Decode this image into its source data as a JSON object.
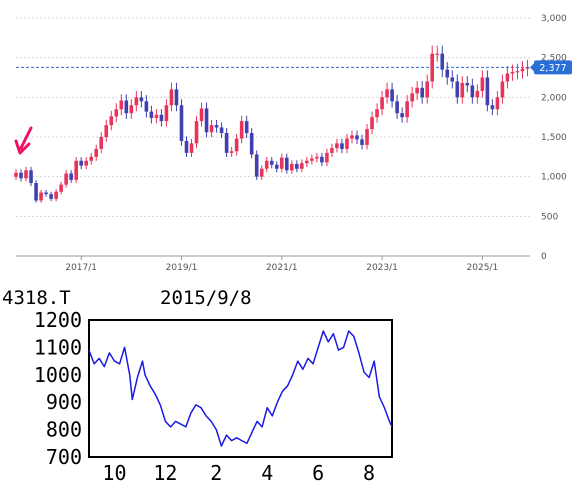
{
  "top_chart_price_label": "2,377",
  "bottom_chart_header": {
    "ticker": "4318.T",
    "date": "2015/9/8"
  },
  "chart_data": [
    {
      "type": "candlestick",
      "title": "",
      "x_ticks": [
        "2017/1",
        "2019/1",
        "2021/1",
        "2023/1",
        "2025/1"
      ],
      "y_ticks": [
        "0",
        "500",
        "1,000",
        "1,500",
        "2,000",
        "2,500",
        "3,000"
      ],
      "ylim": [
        0,
        3000
      ],
      "xlim": [
        2015.7,
        2025.95
      ],
      "current_price": 2377,
      "grid": true,
      "colors": {
        "up": "#e8335a",
        "down": "#4040b0",
        "price_line": "#2a6fd6"
      },
      "series": [
        {
          "x": 2015.7,
          "c": 1050
        },
        {
          "x": 2015.8,
          "c": 980
        },
        {
          "x": 2015.9,
          "c": 1080
        },
        {
          "x": 2016.0,
          "c": 920
        },
        {
          "x": 2016.1,
          "c": 700
        },
        {
          "x": 2016.2,
          "c": 800
        },
        {
          "x": 2016.3,
          "c": 780
        },
        {
          "x": 2016.4,
          "c": 720
        },
        {
          "x": 2016.5,
          "c": 810
        },
        {
          "x": 2016.6,
          "c": 900
        },
        {
          "x": 2016.7,
          "c": 1040
        },
        {
          "x": 2016.8,
          "c": 960
        },
        {
          "x": 2016.9,
          "c": 1200
        },
        {
          "x": 2017.0,
          "c": 1140
        },
        {
          "x": 2017.1,
          "c": 1200
        },
        {
          "x": 2017.2,
          "c": 1250
        },
        {
          "x": 2017.3,
          "c": 1350
        },
        {
          "x": 2017.4,
          "c": 1500
        },
        {
          "x": 2017.5,
          "c": 1650
        },
        {
          "x": 2017.6,
          "c": 1760
        },
        {
          "x": 2017.7,
          "c": 1850
        },
        {
          "x": 2017.8,
          "c": 1960
        },
        {
          "x": 2017.9,
          "c": 1800
        },
        {
          "x": 2018.0,
          "c": 1900
        },
        {
          "x": 2018.1,
          "c": 2000
        },
        {
          "x": 2018.2,
          "c": 1950
        },
        {
          "x": 2018.3,
          "c": 1820
        },
        {
          "x": 2018.4,
          "c": 1740
        },
        {
          "x": 2018.5,
          "c": 1780
        },
        {
          "x": 2018.6,
          "c": 1700
        },
        {
          "x": 2018.7,
          "c": 1900
        },
        {
          "x": 2018.8,
          "c": 2100
        },
        {
          "x": 2018.9,
          "c": 1900
        },
        {
          "x": 2019.0,
          "c": 1450
        },
        {
          "x": 2019.1,
          "c": 1300
        },
        {
          "x": 2019.2,
          "c": 1420
        },
        {
          "x": 2019.3,
          "c": 1700
        },
        {
          "x": 2019.4,
          "c": 1860
        },
        {
          "x": 2019.5,
          "c": 1560
        },
        {
          "x": 2019.6,
          "c": 1650
        },
        {
          "x": 2019.7,
          "c": 1620
        },
        {
          "x": 2019.8,
          "c": 1550
        },
        {
          "x": 2019.9,
          "c": 1300
        },
        {
          "x": 2020.0,
          "c": 1320
        },
        {
          "x": 2020.1,
          "c": 1480
        },
        {
          "x": 2020.2,
          "c": 1700
        },
        {
          "x": 2020.3,
          "c": 1550
        },
        {
          "x": 2020.4,
          "c": 1280
        },
        {
          "x": 2020.5,
          "c": 1000
        },
        {
          "x": 2020.6,
          "c": 1100
        },
        {
          "x": 2020.7,
          "c": 1200
        },
        {
          "x": 2020.8,
          "c": 1150
        },
        {
          "x": 2020.9,
          "c": 1100
        },
        {
          "x": 2021.0,
          "c": 1240
        },
        {
          "x": 2021.1,
          "c": 1080
        },
        {
          "x": 2021.2,
          "c": 1160
        },
        {
          "x": 2021.3,
          "c": 1100
        },
        {
          "x": 2021.4,
          "c": 1170
        },
        {
          "x": 2021.5,
          "c": 1200
        },
        {
          "x": 2021.6,
          "c": 1230
        },
        {
          "x": 2021.7,
          "c": 1250
        },
        {
          "x": 2021.8,
          "c": 1180
        },
        {
          "x": 2021.9,
          "c": 1300
        },
        {
          "x": 2022.0,
          "c": 1360
        },
        {
          "x": 2022.1,
          "c": 1420
        },
        {
          "x": 2022.2,
          "c": 1350
        },
        {
          "x": 2022.3,
          "c": 1480
        },
        {
          "x": 2022.4,
          "c": 1520
        },
        {
          "x": 2022.5,
          "c": 1470
        },
        {
          "x": 2022.6,
          "c": 1400
        },
        {
          "x": 2022.7,
          "c": 1600
        },
        {
          "x": 2022.8,
          "c": 1750
        },
        {
          "x": 2022.9,
          "c": 1850
        },
        {
          "x": 2023.0,
          "c": 2000
        },
        {
          "x": 2023.1,
          "c": 2100
        },
        {
          "x": 2023.2,
          "c": 1950
        },
        {
          "x": 2023.3,
          "c": 1800
        },
        {
          "x": 2023.4,
          "c": 1750
        },
        {
          "x": 2023.5,
          "c": 1950
        },
        {
          "x": 2023.6,
          "c": 2050
        },
        {
          "x": 2023.7,
          "c": 2120
        },
        {
          "x": 2023.8,
          "c": 2000
        },
        {
          "x": 2023.9,
          "c": 2200
        },
        {
          "x": 2024.0,
          "c": 2550
        },
        {
          "x": 2024.1,
          "c": 2550
        },
        {
          "x": 2024.2,
          "c": 2350
        },
        {
          "x": 2024.3,
          "c": 2250
        },
        {
          "x": 2024.4,
          "c": 2200
        },
        {
          "x": 2024.5,
          "c": 2000
        },
        {
          "x": 2024.6,
          "c": 2180
        },
        {
          "x": 2024.7,
          "c": 2150
        },
        {
          "x": 2024.8,
          "c": 2000
        },
        {
          "x": 2024.9,
          "c": 2080
        },
        {
          "x": 2025.0,
          "c": 2250
        },
        {
          "x": 2025.1,
          "c": 1900
        },
        {
          "x": 2025.2,
          "c": 1850
        },
        {
          "x": 2025.3,
          "c": 2000
        },
        {
          "x": 2025.4,
          "c": 2200
        },
        {
          "x": 2025.5,
          "c": 2300
        },
        {
          "x": 2025.6,
          "c": 2320
        },
        {
          "x": 2025.7,
          "c": 2330
        },
        {
          "x": 2025.8,
          "c": 2360
        },
        {
          "x": 2025.9,
          "c": 2377
        }
      ]
    },
    {
      "type": "line",
      "title": "",
      "x_ticks": [
        {
          "label": "10",
          "x": 0.3
        },
        {
          "label": "12",
          "x": 2.3
        },
        {
          "label": "2",
          "x": 4.3
        },
        {
          "label": "4",
          "x": 6.3
        },
        {
          "label": "6",
          "x": 8.3
        },
        {
          "label": "8",
          "x": 10.3
        }
      ],
      "y_ticks": [
        700,
        800,
        900,
        1000,
        1100,
        1200
      ],
      "ylim": [
        700,
        1200
      ],
      "xlim": [
        -0.7,
        11.2
      ],
      "grid": false,
      "colors": {
        "line": "#1a1ae6"
      },
      "series": [
        {
          "x": -0.7,
          "y": 1090
        },
        {
          "x": -0.5,
          "y": 1040
        },
        {
          "x": -0.3,
          "y": 1060
        },
        {
          "x": -0.1,
          "y": 1030
        },
        {
          "x": 0.1,
          "y": 1080
        },
        {
          "x": 0.3,
          "y": 1050
        },
        {
          "x": 0.5,
          "y": 1040
        },
        {
          "x": 0.7,
          "y": 1100
        },
        {
          "x": 0.9,
          "y": 1000
        },
        {
          "x": 1.0,
          "y": 910
        },
        {
          "x": 1.2,
          "y": 990
        },
        {
          "x": 1.4,
          "y": 1050
        },
        {
          "x": 1.5,
          "y": 1000
        },
        {
          "x": 1.7,
          "y": 960
        },
        {
          "x": 1.9,
          "y": 930
        },
        {
          "x": 2.1,
          "y": 890
        },
        {
          "x": 2.3,
          "y": 830
        },
        {
          "x": 2.5,
          "y": 810
        },
        {
          "x": 2.7,
          "y": 830
        },
        {
          "x": 2.9,
          "y": 820
        },
        {
          "x": 3.1,
          "y": 810
        },
        {
          "x": 3.3,
          "y": 860
        },
        {
          "x": 3.5,
          "y": 890
        },
        {
          "x": 3.7,
          "y": 880
        },
        {
          "x": 3.9,
          "y": 850
        },
        {
          "x": 4.1,
          "y": 830
        },
        {
          "x": 4.3,
          "y": 800
        },
        {
          "x": 4.5,
          "y": 740
        },
        {
          "x": 4.7,
          "y": 780
        },
        {
          "x": 4.9,
          "y": 760
        },
        {
          "x": 5.1,
          "y": 770
        },
        {
          "x": 5.3,
          "y": 760
        },
        {
          "x": 5.5,
          "y": 750
        },
        {
          "x": 5.7,
          "y": 790
        },
        {
          "x": 5.9,
          "y": 830
        },
        {
          "x": 6.1,
          "y": 810
        },
        {
          "x": 6.3,
          "y": 880
        },
        {
          "x": 6.5,
          "y": 850
        },
        {
          "x": 6.7,
          "y": 900
        },
        {
          "x": 6.9,
          "y": 940
        },
        {
          "x": 7.1,
          "y": 960
        },
        {
          "x": 7.3,
          "y": 1000
        },
        {
          "x": 7.5,
          "y": 1050
        },
        {
          "x": 7.7,
          "y": 1020
        },
        {
          "x": 7.9,
          "y": 1060
        },
        {
          "x": 8.1,
          "y": 1040
        },
        {
          "x": 8.3,
          "y": 1100
        },
        {
          "x": 8.5,
          "y": 1160
        },
        {
          "x": 8.7,
          "y": 1120
        },
        {
          "x": 8.9,
          "y": 1150
        },
        {
          "x": 9.1,
          "y": 1090
        },
        {
          "x": 9.3,
          "y": 1100
        },
        {
          "x": 9.5,
          "y": 1160
        },
        {
          "x": 9.7,
          "y": 1140
        },
        {
          "x": 9.9,
          "y": 1080
        },
        {
          "x": 10.1,
          "y": 1010
        },
        {
          "x": 10.3,
          "y": 990
        },
        {
          "x": 10.5,
          "y": 1050
        },
        {
          "x": 10.7,
          "y": 920
        },
        {
          "x": 10.9,
          "y": 880
        },
        {
          "x": 11.1,
          "y": 830
        },
        {
          "x": 11.2,
          "y": 810
        }
      ]
    }
  ]
}
